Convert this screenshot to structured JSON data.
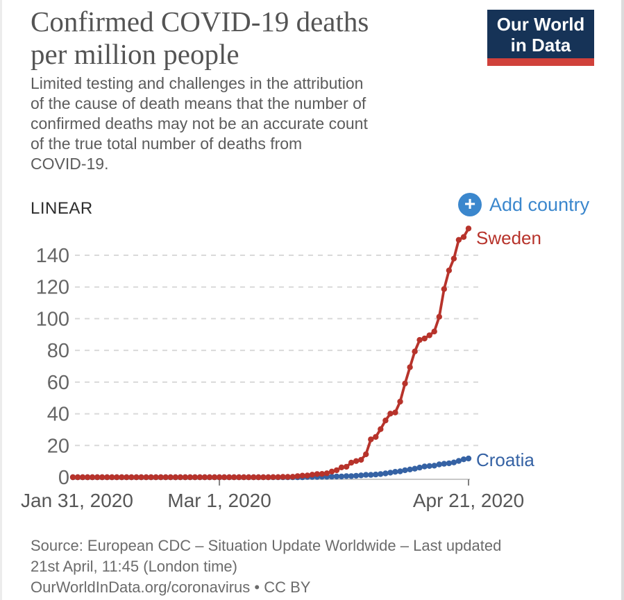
{
  "header": {
    "title_lines": [
      "Confirmed COVID-19 deaths",
      "per million people"
    ],
    "subtitle_lines": [
      "Limited testing and challenges in the attribution",
      "of the cause of death means that the number of",
      "confirmed deaths may not be an accurate count",
      "of the true total number of deaths from",
      "COVID-19."
    ],
    "logo": {
      "lines": [
        "Our World",
        "in Data"
      ],
      "bg_color": "#163357",
      "accent_color": "#d0413b"
    }
  },
  "controls": {
    "scale_label": "LINEAR",
    "add_country_label": "Add country",
    "plus_icon": "+",
    "accent_color": "#3b87cd"
  },
  "chart_data": {
    "type": "line",
    "title": "Confirmed COVID-19 deaths per million people",
    "xlabel": "",
    "ylabel": "",
    "x_unit": "days since Jan 31, 2020 (daily points)",
    "xticks": [
      {
        "label": "Jan 31, 2020",
        "day": 0
      },
      {
        "label": "Mar 1, 2020",
        "day": 30
      },
      {
        "label": "Apr 21, 2020",
        "day": 81
      }
    ],
    "yticks": [
      0,
      20,
      40,
      60,
      80,
      100,
      120,
      140
    ],
    "ylim": [
      0,
      157
    ],
    "grid": true,
    "grid_color": "#d9d9d9",
    "axis_color": "#c8c8c8",
    "tick_color": "#808080",
    "legend_position": "end-of-line labels",
    "series": [
      {
        "name": "Sweden",
        "color": "#b7332b",
        "values": [
          0,
          0,
          0,
          0,
          0,
          0,
          0,
          0,
          0,
          0,
          0,
          0,
          0,
          0,
          0,
          0,
          0,
          0,
          0,
          0,
          0,
          0,
          0,
          0,
          0,
          0,
          0,
          0,
          0,
          0,
          0,
          0,
          0,
          0,
          0,
          0,
          0,
          0,
          0,
          0,
          0,
          0.1,
          0.1,
          0.2,
          0.2,
          0.3,
          0.7,
          1.0,
          1.1,
          1.6,
          2.0,
          2.1,
          2.5,
          3.6,
          4.4,
          6.2,
          6.6,
          9.2,
          10.2,
          11.0,
          14.5,
          23.9,
          25.4,
          30.3,
          35.8,
          40.1,
          40.8,
          47.7,
          59.1,
          69.4,
          79.3,
          86.6,
          87.5,
          89.5,
          91.9,
          101.2,
          118.7,
          130.4,
          137.9,
          149.7,
          151.5,
          156.9
        ]
      },
      {
        "name": "Croatia",
        "color": "#3562a4",
        "values": [
          0,
          0,
          0,
          0,
          0,
          0,
          0,
          0,
          0,
          0,
          0,
          0,
          0,
          0,
          0,
          0,
          0,
          0,
          0,
          0,
          0,
          0,
          0,
          0,
          0,
          0,
          0,
          0,
          0,
          0,
          0,
          0,
          0,
          0,
          0,
          0,
          0,
          0,
          0,
          0,
          0,
          0,
          0,
          0,
          0,
          0,
          0,
          0,
          0.2,
          0.2,
          0.2,
          0.3,
          0.3,
          0.4,
          0.5,
          0.5,
          0.7,
          0.7,
          0.9,
          1.2,
          1.5,
          1.5,
          1.7,
          2.0,
          2.4,
          2.9,
          3.4,
          3.7,
          4.4,
          4.9,
          5.4,
          6.1,
          6.8,
          7.1,
          7.3,
          8.1,
          8.5,
          8.8,
          9.3,
          10.3,
          11.3,
          11.8
        ]
      }
    ]
  },
  "footer": {
    "lines": [
      "Source: European CDC – Situation Update Worldwide – Last updated",
      "21st April, 11:45 (London time)",
      "OurWorldInData.org/coronavirus • CC BY"
    ]
  }
}
